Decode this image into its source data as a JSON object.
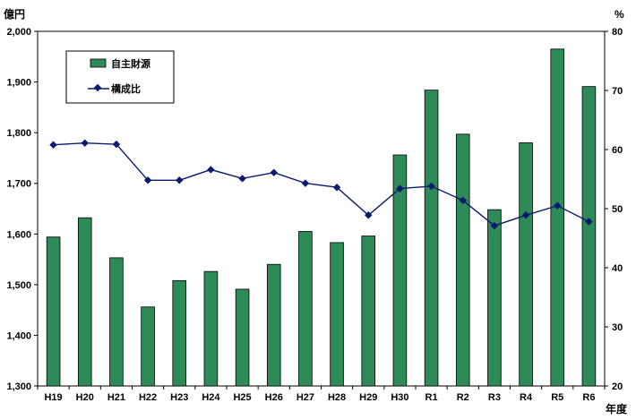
{
  "chart_data": {
    "type": "bar",
    "categories": [
      "H19",
      "H20",
      "H21",
      "H22",
      "H23",
      "H24",
      "H25",
      "H26",
      "H27",
      "H28",
      "H29",
      "H30",
      "R1",
      "R2",
      "R3",
      "R4",
      "R5",
      "R6"
    ],
    "series": [
      {
        "name": "自主財源",
        "kind": "bar",
        "axis": "left",
        "color": "#2e8b57",
        "values": [
          1594,
          1632,
          1553,
          1456,
          1508,
          1526,
          1491,
          1540,
          1605,
          1583,
          1596,
          1756,
          1884,
          1797,
          1648,
          1780,
          1965,
          1891
        ]
      },
      {
        "name": "構成比",
        "kind": "line",
        "axis": "right",
        "color": "#0a1a6e",
        "values": [
          60.8,
          61.1,
          60.9,
          54.8,
          54.8,
          56.6,
          55.1,
          56.1,
          54.3,
          53.6,
          48.9,
          53.4,
          53.8,
          51.4,
          47.1,
          48.9,
          50.5,
          47.8
        ]
      }
    ],
    "y_left": {
      "unit": "億円",
      "ylim": [
        1300,
        2000
      ],
      "ticks": [
        "1,300",
        "1,400",
        "1,500",
        "1,600",
        "1,700",
        "1,800",
        "1,900",
        "2,000"
      ]
    },
    "y_right": {
      "unit": "%",
      "ylim": [
        20,
        80
      ],
      "ticks": [
        "20",
        "30",
        "40",
        "50",
        "60",
        "70",
        "80"
      ]
    },
    "x_unit": "年度",
    "legend_position": "top-left",
    "grid": false
  }
}
